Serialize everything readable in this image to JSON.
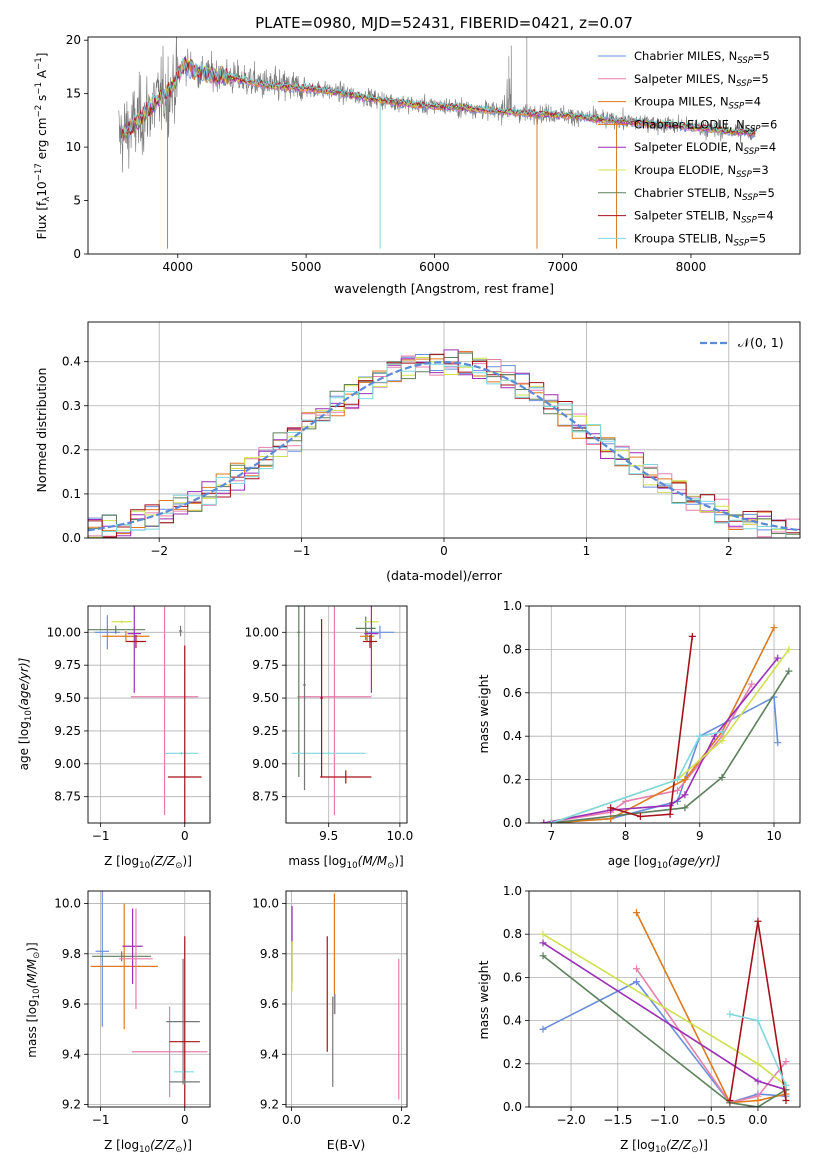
{
  "colors": {
    "blue": "#6a8fdc",
    "pink": "#e77fad",
    "orange": "#dd7a1f",
    "purple": "#9b2fb7",
    "yellowgreen": "#cfe04e",
    "darkgreen": "#5e7f5c",
    "darkred": "#a5121a",
    "cyan": "#7fd7df",
    "gray": "#777777",
    "gaussian": "#5b8ad6"
  },
  "chart_data": [
    {
      "id": "spectrum",
      "type": "line",
      "title": "PLATE=0980, MJD=52431, FIBERID=0421, z=0.07",
      "xlabel": "wavelength [Angstrom, rest frame]",
      "ylabel": "Flux [f",
      "ylabel_parts": {
        "a": "Flux [f",
        "b": "λ",
        "c": "10",
        "d": "−17",
        "e": " erg cm",
        "f": "−2",
        "g": " s",
        "h": "−1",
        "i": " A",
        "j": "−1",
        "k": "]"
      },
      "xlim": [
        3300,
        8850
      ],
      "ylim": [
        0,
        20.3
      ],
      "xticks": [
        "4000",
        "5000",
        "6000",
        "7000",
        "8000"
      ],
      "xtick_values": [
        4000,
        5000,
        6000,
        7000,
        8000
      ],
      "yticks": [
        "0",
        "5",
        "10",
        "15",
        "20"
      ],
      "ytick_values": [
        0,
        5,
        10,
        15,
        20
      ],
      "continuum": {
        "x": [
          3550,
          3650,
          3750,
          3850,
          3950,
          4050,
          4150,
          4300,
          4500,
          4700,
          4900,
          5100,
          5300,
          5500,
          5700,
          5900,
          6100,
          6300,
          6500,
          6700,
          6900,
          7100,
          7300,
          7500,
          7700,
          7900,
          8100,
          8300,
          8500
        ],
        "y": [
          11.0,
          12.0,
          13.2,
          14.5,
          15.5,
          17.8,
          17.0,
          16.8,
          16.3,
          15.8,
          15.6,
          15.4,
          15.0,
          14.6,
          14.2,
          13.9,
          13.8,
          13.6,
          13.4,
          13.2,
          13.1,
          12.9,
          12.6,
          12.4,
          12.2,
          12.0,
          11.8,
          11.5,
          11.3
        ]
      },
      "legend": [
        {
          "label": "Chabrier MILES, N",
          "sub": "SSP",
          "n": "=5",
          "color": "blue"
        },
        {
          "label": "Salpeter MILES, N",
          "sub": "SSP",
          "n": "=5",
          "color": "pink"
        },
        {
          "label": "Kroupa MILES, N",
          "sub": "SSP",
          "n": "=4",
          "color": "orange"
        },
        {
          "label": "Chabrier ELODIE, N",
          "sub": "SSP",
          "n": "=6",
          "color": "orange"
        },
        {
          "label": "Salpeter ELODIE, N",
          "sub": "SSP",
          "n": "=4",
          "color": "purple"
        },
        {
          "label": "Kroupa ELODIE, N",
          "sub": "SSP",
          "n": "=3",
          "color": "yellowgreen"
        },
        {
          "label": "Chabrier STELIB, N",
          "sub": "SSP",
          "n": "=5",
          "color": "darkgreen"
        },
        {
          "label": "Salpeter STELIB, N",
          "sub": "SSP",
          "n": "=4",
          "color": "darkred"
        },
        {
          "label": "Kroupa STELIB, N",
          "sub": "SSP",
          "n": "=5",
          "color": "cyan"
        }
      ]
    },
    {
      "id": "residuals",
      "type": "line",
      "xlabel": "(data-model)/error",
      "ylabel": "Normed distribution",
      "xlim": [
        -2.5,
        2.5
      ],
      "ylim": [
        0,
        0.49
      ],
      "xticks": [
        "−2",
        "−1",
        "0",
        "1",
        "2"
      ],
      "xtick_values": [
        -2,
        -1,
        0,
        1,
        2
      ],
      "yticks": [
        "0.0",
        "0.1",
        "0.2",
        "0.3",
        "0.4"
      ],
      "ytick_values": [
        0,
        0.1,
        0.2,
        0.3,
        0.4
      ],
      "legend": [
        {
          "label": "𝒩(0, 1)",
          "color": "gaussian"
        }
      ],
      "grid": true
    },
    {
      "id": "age-vs-Z",
      "type": "scatter",
      "xlabel": "Z [log",
      "xlabel_parts": {
        "a": "Z [log",
        "b": "10",
        "c": "(Z/Z",
        "d": "⊙",
        "e": ")]"
      },
      "ylabel": "age  [log",
      "ylabel_parts": {
        "a": "age  [log",
        "b": "10",
        "c": "(age/yr)]"
      },
      "xlim": [
        -1.15,
        0.3
      ],
      "ylim": [
        8.55,
        10.2
      ],
      "xticks": [
        "−1",
        "0"
      ],
      "xtick_values": [
        -1,
        0
      ],
      "yticks": [
        "8.75",
        "9.00",
        "9.25",
        "9.50",
        "9.75",
        "10.00"
      ],
      "ytick_values": [
        8.75,
        9.0,
        9.25,
        9.5,
        9.75,
        10.0
      ],
      "grid": true,
      "errorbars": [
        {
          "color": "blue",
          "x": -0.92,
          "y": 10.0,
          "xerr": 0.15,
          "yerr": 0.13
        },
        {
          "color": "darkgreen",
          "x": -0.82,
          "y": 10.02,
          "xerr": 0.35,
          "yerr": 0.03
        },
        {
          "color": "yellowgreen",
          "x": -0.75,
          "y": 10.08,
          "xerr": 0.12,
          "yerr": 0.01
        },
        {
          "color": "orange",
          "x": -0.7,
          "y": 9.97,
          "xerr": 0.28,
          "yerr": 0.04
        },
        {
          "color": "purple",
          "x": -0.6,
          "y": 9.99,
          "xerr": 0.08,
          "yerr": 0.45
        },
        {
          "color": "darkred",
          "x": -0.58,
          "y": 9.93,
          "xerr": 0.12,
          "yerr": 0.05
        },
        {
          "color": "pink",
          "x": -0.24,
          "y": 9.51,
          "xerr": 0.4,
          "yerr": 0.9
        },
        {
          "color": "gray",
          "x": -0.05,
          "y": 10.01,
          "xerr": 0.02,
          "yerr": 0.04
        },
        {
          "color": "cyan",
          "x": -0.04,
          "y": 9.08,
          "xerr": 0.2,
          "yerr": 0.01
        },
        {
          "color": "darkred",
          "x": 0.0,
          "y": 8.9,
          "xerr": 0.2,
          "yerr": 1.0
        }
      ]
    },
    {
      "id": "age-vs-mass",
      "type": "scatter",
      "xlabel": "mass [log",
      "xlabel_parts": {
        "a": "mass [log",
        "b": "10",
        "c": "(M/M",
        "d": "⊙",
        "e": ")]"
      },
      "xlim": [
        9.2,
        10.05
      ],
      "ylim": [
        8.55,
        10.2
      ],
      "xticks": [
        "9.5",
        "10.0"
      ],
      "xtick_values": [
        9.5,
        10.0
      ],
      "yticks": [
        "8.75",
        "9.00",
        "9.25",
        "9.50",
        "9.75",
        "10.00"
      ],
      "ytick_values": [
        8.75,
        9.0,
        9.25,
        9.5,
        9.75,
        10.0
      ],
      "grid": true,
      "errorbars": [
        {
          "color": "blue",
          "x": 9.86,
          "y": 10.0,
          "xerr": 0.1,
          "yerr": 0.05
        },
        {
          "color": "darkgreen",
          "x": 9.76,
          "y": 10.03,
          "xerr": 0.07,
          "yerr": 0.09
        },
        {
          "color": "yellowgreen",
          "x": 9.8,
          "y": 10.08,
          "xerr": 0.05,
          "yerr": 0.02
        },
        {
          "color": "orange",
          "x": 9.77,
          "y": 9.97,
          "xerr": 0.05,
          "yerr": 0.04
        },
        {
          "color": "purple",
          "x": 9.8,
          "y": 9.99,
          "xerr": 0.05,
          "yerr": 0.45
        },
        {
          "color": "darkred",
          "x": 9.79,
          "y": 9.93,
          "xerr": 0.05,
          "yerr": 0.05
        },
        {
          "color": "pink",
          "x": 9.54,
          "y": 9.51,
          "xerr": 0.26,
          "yerr": 0.9
        },
        {
          "color": "darkgreen",
          "x": 9.29,
          "y": 10.0,
          "xerr": 0.01,
          "yerr": 1.1
        },
        {
          "color": "cyan",
          "x": 9.5,
          "y": 9.08,
          "xerr": 0.26,
          "yerr": 0.01
        },
        {
          "color": "gray",
          "x": 9.33,
          "y": 9.6,
          "xerr": 0.01,
          "yerr": 0.8
        },
        {
          "color": "darkred",
          "x": 9.62,
          "y": 8.9,
          "xerr": 0.18,
          "yerr": 0.05
        },
        {
          "color": "darkred",
          "x": 9.45,
          "y": 9.5,
          "xerr": 0.01,
          "yerr": 0.6
        }
      ]
    },
    {
      "id": "massweight-vs-age",
      "type": "line",
      "xlabel": "age  [log",
      "xlabel_parts": {
        "a": "age  [log",
        "b": "10",
        "c": "(age/yr)]"
      },
      "ylabel": "mass weight",
      "xlim": [
        6.7,
        10.35
      ],
      "ylim": [
        0,
        1.0
      ],
      "xticks": [
        "7",
        "8",
        "9",
        "10"
      ],
      "xtick_values": [
        7,
        8,
        9,
        10
      ],
      "yticks": [
        "0.0",
        "0.2",
        "0.4",
        "0.6",
        "0.8",
        "1.0"
      ],
      "ytick_values": [
        0,
        0.2,
        0.4,
        0.6,
        0.8,
        1.0
      ],
      "grid": true,
      "series": [
        {
          "color": "blue",
          "x": [
            6.9,
            7.8,
            8.7,
            9.0,
            10.0,
            10.05
          ],
          "y": [
            0.0,
            0.02,
            0.1,
            0.4,
            0.58,
            0.37
          ]
        },
        {
          "color": "pink",
          "x": [
            6.9,
            7.8,
            8.0,
            8.7,
            9.3,
            9.7
          ],
          "y": [
            0.0,
            0.05,
            0.1,
            0.15,
            0.4,
            0.64
          ]
        },
        {
          "color": "orange",
          "x": [
            7.0,
            7.8,
            8.8,
            9.3,
            10.0
          ],
          "y": [
            0.0,
            0.02,
            0.2,
            0.42,
            0.9
          ]
        },
        {
          "color": "purple",
          "x": [
            6.9,
            7.8,
            8.6,
            8.8,
            9.2,
            10.05
          ],
          "y": [
            0.0,
            0.06,
            0.08,
            0.13,
            0.4,
            0.76
          ]
        },
        {
          "color": "yellowgreen",
          "x": [
            7.0,
            8.7,
            9.3,
            10.2
          ],
          "y": [
            0.0,
            0.2,
            0.38,
            0.8
          ]
        },
        {
          "color": "darkgreen",
          "x": [
            7.0,
            8.8,
            9.3,
            10.2
          ],
          "y": [
            0.0,
            0.07,
            0.21,
            0.7
          ]
        },
        {
          "color": "darkred",
          "x": [
            7.8,
            8.2,
            8.6,
            8.9
          ],
          "y": [
            0.07,
            0.03,
            0.04,
            0.86
          ]
        },
        {
          "color": "cyan",
          "x": [
            7.0,
            8.7,
            9.0,
            9.3
          ],
          "y": [
            0.0,
            0.2,
            0.4,
            0.42
          ]
        }
      ]
    },
    {
      "id": "mass-vs-Z",
      "type": "scatter",
      "xlabel": "Z [log",
      "xlabel_parts": {
        "a": "Z [log",
        "b": "10",
        "c": "(Z/Z",
        "d": "⊙",
        "e": ")]"
      },
      "ylabel": "mass [log",
      "ylabel_parts": {
        "a": "mass [log",
        "b": "10",
        "c": "(M/M",
        "d": "⊙",
        "e": ")]"
      },
      "xlim": [
        -1.15,
        0.3
      ],
      "ylim": [
        9.19,
        10.05
      ],
      "xticks": [
        "−1",
        "0"
      ],
      "xtick_values": [
        -1,
        0
      ],
      "yticks": [
        "9.2",
        "9.4",
        "9.6",
        "9.8",
        "10.0"
      ],
      "ytick_values": [
        9.2,
        9.4,
        9.6,
        9.8,
        10.0
      ],
      "grid": true,
      "errorbars": [
        {
          "color": "blue",
          "x": -0.98,
          "y": 9.81,
          "xerr": 0.08,
          "yerr": 0.3
        },
        {
          "color": "orange",
          "x": -0.72,
          "y": 9.75,
          "xerr": 0.4,
          "yerr": 0.25
        },
        {
          "color": "darkgreen",
          "x": -0.75,
          "y": 9.79,
          "xerr": 0.35,
          "yerr": 0.02
        },
        {
          "color": "purple",
          "x": -0.62,
          "y": 9.83,
          "xerr": 0.12,
          "yerr": 0.15
        },
        {
          "color": "pink",
          "x": -0.58,
          "y": 9.78,
          "xerr": 0.2,
          "yerr": 0.2
        },
        {
          "color": "pink",
          "x": -0.18,
          "y": 9.41,
          "xerr": 0.45,
          "yerr": 0.18
        },
        {
          "color": "gray",
          "x": -0.02,
          "y": 9.53,
          "xerr": 0.2,
          "yerr": 0.25
        },
        {
          "color": "cyan",
          "x": -0.01,
          "y": 9.33,
          "xerr": 0.12,
          "yerr": 0.01
        },
        {
          "color": "darkred",
          "x": 0.0,
          "y": 9.45,
          "xerr": 0.18,
          "yerr": 0.42
        },
        {
          "color": "gray",
          "x": 0.0,
          "y": 9.29,
          "xerr": 0.18,
          "yerr": 0.01
        }
      ]
    },
    {
      "id": "mass-vs-EBV",
      "type": "scatter",
      "xlabel": "E(B-V)",
      "xlim": [
        -0.01,
        0.21
      ],
      "ylim": [
        9.19,
        10.05
      ],
      "xticks": [
        "0.0",
        "0.2"
      ],
      "xtick_values": [
        0.0,
        0.2
      ],
      "yticks": [
        "9.2",
        "9.4",
        "9.6",
        "9.8",
        "10.0"
      ],
      "ytick_values": [
        9.2,
        9.4,
        9.6,
        9.8,
        10.0
      ],
      "grid": true,
      "errorbars": [
        {
          "color": "purple",
          "x": 0.001,
          "y": 9.84,
          "xerr": 0.0,
          "yerr": 0.15
        },
        {
          "color": "yellowgreen",
          "x": 0.001,
          "y": 9.75,
          "xerr": 0.0,
          "yerr": 0.1
        },
        {
          "color": "darkred",
          "x": 0.065,
          "y": 9.64,
          "xerr": 0.0,
          "yerr": 0.23
        },
        {
          "color": "gray",
          "x": 0.075,
          "y": 9.45,
          "xerr": 0.0,
          "yerr": 0.18
        },
        {
          "color": "orange",
          "x": 0.078,
          "y": 9.8,
          "xerr": 0.0,
          "yerr": 0.24
        },
        {
          "color": "blue",
          "x": 0.079,
          "y": 9.6,
          "xerr": 0.0,
          "yerr": 0.04
        },
        {
          "color": "pink",
          "x": 0.195,
          "y": 9.5,
          "xerr": 0.0,
          "yerr": 0.28
        }
      ]
    },
    {
      "id": "massweight-vs-Z",
      "type": "line",
      "xlabel": "Z [log",
      "xlabel_parts": {
        "a": "Z [log",
        "b": "10",
        "c": "(Z/Z",
        "d": "⊙",
        "e": ")]"
      },
      "ylabel": "mass weight",
      "xlim": [
        -2.45,
        0.45
      ],
      "ylim": [
        0,
        1.0
      ],
      "xticks": [
        "−2.0",
        "−1.5",
        "−1.0",
        "−0.5",
        "0.0"
      ],
      "xtick_values": [
        -2.0,
        -1.5,
        -1.0,
        -0.5,
        0.0
      ],
      "yticks": [
        "0.0",
        "0.2",
        "0.4",
        "0.6",
        "0.8",
        "1.0"
      ],
      "ytick_values": [
        0,
        0.2,
        0.4,
        0.6,
        0.8,
        1.0
      ],
      "grid": true,
      "series": [
        {
          "color": "blue",
          "x": [
            -2.3,
            -1.3,
            -0.3,
            0.0,
            0.3
          ],
          "y": [
            0.36,
            0.58,
            0.02,
            0.06,
            0.05
          ]
        },
        {
          "color": "pink",
          "x": [
            -1.3,
            -0.3,
            0.0,
            0.3
          ],
          "y": [
            0.64,
            0.02,
            0.05,
            0.21
          ]
        },
        {
          "color": "orange",
          "x": [
            -1.3,
            -0.3,
            0.0,
            0.3
          ],
          "y": [
            0.9,
            0.02,
            0.03,
            0.06
          ]
        },
        {
          "color": "purple",
          "x": [
            -2.3,
            0.0,
            0.3
          ],
          "y": [
            0.76,
            0.12,
            0.08
          ]
        },
        {
          "color": "yellowgreen",
          "x": [
            -2.3,
            0.0,
            0.3
          ],
          "y": [
            0.8,
            0.2,
            0.1
          ]
        },
        {
          "color": "darkgreen",
          "x": [
            -2.3,
            -0.3,
            0.0,
            0.3
          ],
          "y": [
            0.7,
            0.02,
            0.0,
            0.08
          ]
        },
        {
          "color": "darkred",
          "x": [
            -0.3,
            0.0,
            0.3
          ],
          "y": [
            0.03,
            0.86,
            0.03
          ]
        },
        {
          "color": "cyan",
          "x": [
            -0.3,
            0.0,
            0.3
          ],
          "y": [
            0.43,
            0.4,
            0.1
          ]
        }
      ]
    }
  ]
}
